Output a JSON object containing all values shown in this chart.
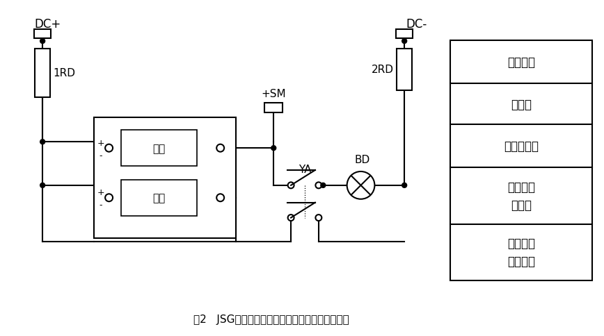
{
  "title": "图2   JSG系列静态闪光继电器应用外部接线参考图",
  "bg_color": "#ffffff",
  "line_color": "#000000",
  "table_labels": [
    "直流母线",
    "熔断器",
    "闪光小母线",
    "静态闪光\n断电器",
    "试验按钮\n及信号灯"
  ],
  "dc_plus_label": "DC+",
  "dc_minus_label": "DC-",
  "rd1_label": "1RD",
  "rd2_label": "2RD",
  "sm_label": "+SM",
  "ya_label": "YA",
  "bd_label": "BD",
  "qidong_label": "启动",
  "dianyuan_label": "电源",
  "plus_label": "+",
  "minus_label": "-"
}
